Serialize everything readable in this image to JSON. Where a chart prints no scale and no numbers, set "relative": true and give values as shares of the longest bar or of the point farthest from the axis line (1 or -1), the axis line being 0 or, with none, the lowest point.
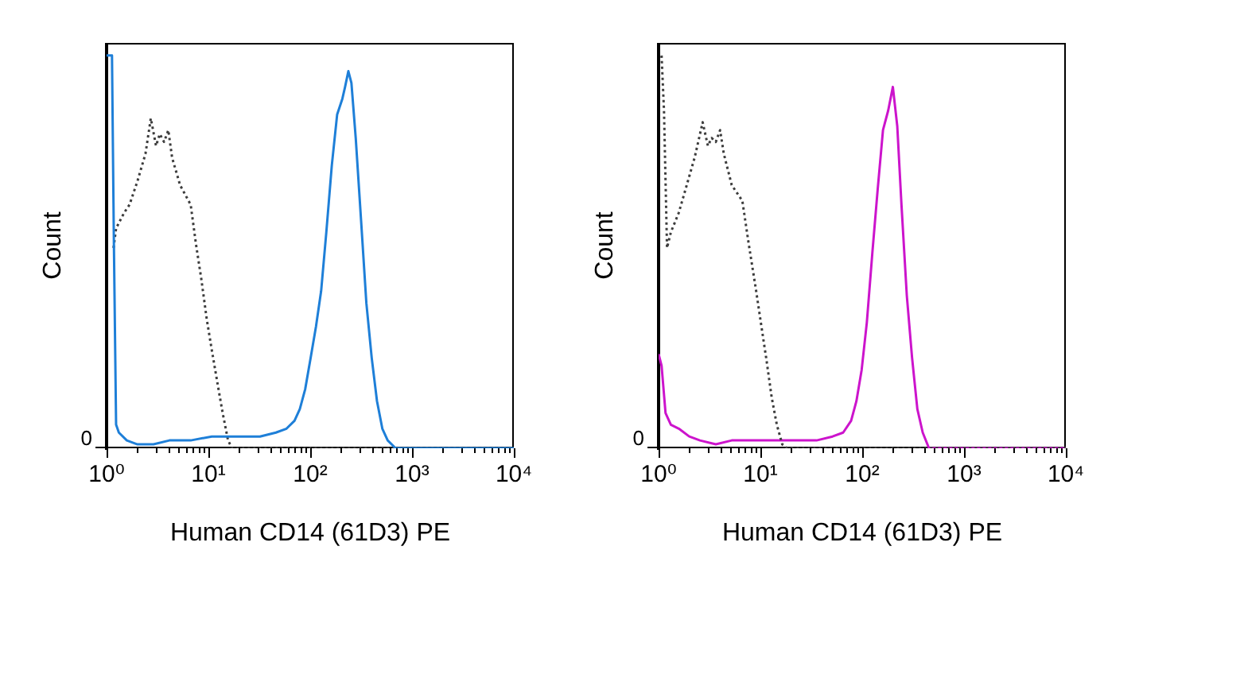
{
  "chart_data": [
    {
      "type": "line",
      "xlabel": "Human CD14 (61D3) PE",
      "ylabel": "Count",
      "log": "x",
      "relative": true,
      "grid": false,
      "legend": false,
      "marker": "none",
      "line_style": "solid",
      "tick_labels": "x",
      "xlim": [
        1,
        10000
      ],
      "xticks": [
        {
          "value": 1,
          "label": "10⁰"
        },
        {
          "value": 2,
          "label": null
        },
        {
          "value": 3,
          "label": null
        },
        {
          "value": 4,
          "label": null
        },
        {
          "value": 5,
          "label": null
        },
        {
          "value": 6,
          "label": null
        },
        {
          "value": 7,
          "label": null
        },
        {
          "value": 8,
          "label": null
        },
        {
          "value": 9,
          "label": null
        },
        {
          "value": 10,
          "label": "10¹"
        },
        {
          "value": 20,
          "label": null
        },
        {
          "value": 30,
          "label": null
        },
        {
          "value": 40,
          "label": null
        },
        {
          "value": 50,
          "label": null
        },
        {
          "value": 60,
          "label": null
        },
        {
          "value": 70,
          "label": null
        },
        {
          "value": 80,
          "label": null
        },
        {
          "value": 90,
          "label": null
        },
        {
          "value": 100,
          "label": "10²"
        },
        {
          "value": 200,
          "label": null
        },
        {
          "value": 300,
          "label": null
        },
        {
          "value": 400,
          "label": null
        },
        {
          "value": 500,
          "label": null
        },
        {
          "value": 600,
          "label": null
        },
        {
          "value": 700,
          "label": null
        },
        {
          "value": 800,
          "label": null
        },
        {
          "value": 900,
          "label": null
        },
        {
          "value": 1000,
          "label": "10³"
        },
        {
          "value": 2000,
          "label": null
        },
        {
          "value": 3000,
          "label": null
        },
        {
          "value": 4000,
          "label": null
        },
        {
          "value": 5000,
          "label": null
        },
        {
          "value": 6000,
          "label": null
        },
        {
          "value": 7000,
          "label": null
        },
        {
          "value": 8000,
          "label": null
        },
        {
          "value": 9000,
          "label": null
        },
        {
          "value": 10000,
          "label": "10⁴"
        }
      ],
      "annotations": [
        "0"
      ],
      "series": [
        {
          "color": "#1e7fd8",
          "x": [
            1,
            1.13,
            1.18,
            1.24,
            1.32,
            1.58,
            2.01,
            2.89,
            4.14,
            6.7,
            10.8,
            15.6,
            21,
            32.1,
            46,
            58.5,
            70.1,
            79.1,
            89.2,
            101,
            114,
            128,
            144,
            163,
            184,
            207,
            220,
            237,
            254,
            280,
            316,
            356,
            402,
            453,
            511,
            577,
            691,
            10000
          ],
          "values": [
            1,
            1,
            0.52,
            0.06,
            0.04,
            0.02,
            0.01,
            0.01,
            0.02,
            0.02,
            0.03,
            0.03,
            0.03,
            0.03,
            0.04,
            0.05,
            0.07,
            0.1,
            0.15,
            0.23,
            0.31,
            0.4,
            0.55,
            0.72,
            0.85,
            0.89,
            0.92,
            0.96,
            0.93,
            0.79,
            0.58,
            0.37,
            0.23,
            0.12,
            0.05,
            0.02,
            0,
            0
          ]
        },
        {
          "color": "#3c3c3c",
          "line_style": "dotted",
          "x": [
            1.17,
            1.24,
            1.49,
            1.68,
            2.01,
            2.41,
            2.72,
            3.06,
            3.33,
            3.67,
            4.04,
            4.4,
            5.27,
            6.7,
            7.55,
            8.53,
            9.62,
            10.8,
            12.2,
            13.8,
            15.6,
            17.1,
            10000
          ],
          "values": [
            0.51,
            0.56,
            0.6,
            0.62,
            0.68,
            0.75,
            0.84,
            0.77,
            0.8,
            0.78,
            0.81,
            0.74,
            0.67,
            0.62,
            0.52,
            0.43,
            0.33,
            0.25,
            0.17,
            0.09,
            0.02,
            0,
            0
          ]
        }
      ]
    },
    {
      "type": "line",
      "xlabel": "Human CD14 (61D3) PE",
      "ylabel": "Count",
      "log": "x",
      "relative": true,
      "grid": false,
      "legend": false,
      "marker": "none",
      "line_style": "solid",
      "tick_labels": "x",
      "xlim": [
        1,
        10000
      ],
      "xticks": [
        {
          "value": 1,
          "label": "10⁰"
        },
        {
          "value": 2,
          "label": null
        },
        {
          "value": 3,
          "label": null
        },
        {
          "value": 4,
          "label": null
        },
        {
          "value": 5,
          "label": null
        },
        {
          "value": 6,
          "label": null
        },
        {
          "value": 7,
          "label": null
        },
        {
          "value": 8,
          "label": null
        },
        {
          "value": 9,
          "label": null
        },
        {
          "value": 10,
          "label": "10¹"
        },
        {
          "value": 20,
          "label": null
        },
        {
          "value": 30,
          "label": null
        },
        {
          "value": 40,
          "label": null
        },
        {
          "value": 50,
          "label": null
        },
        {
          "value": 60,
          "label": null
        },
        {
          "value": 70,
          "label": null
        },
        {
          "value": 80,
          "label": null
        },
        {
          "value": 90,
          "label": null
        },
        {
          "value": 100,
          "label": "10²"
        },
        {
          "value": 200,
          "label": null
        },
        {
          "value": 300,
          "label": null
        },
        {
          "value": 400,
          "label": null
        },
        {
          "value": 500,
          "label": null
        },
        {
          "value": 600,
          "label": null
        },
        {
          "value": 700,
          "label": null
        },
        {
          "value": 800,
          "label": null
        },
        {
          "value": 900,
          "label": null
        },
        {
          "value": 1000,
          "label": "10³"
        },
        {
          "value": 2000,
          "label": null
        },
        {
          "value": 3000,
          "label": null
        },
        {
          "value": 4000,
          "label": null
        },
        {
          "value": 5000,
          "label": null
        },
        {
          "value": 6000,
          "label": null
        },
        {
          "value": 7000,
          "label": null
        },
        {
          "value": 8000,
          "label": null
        },
        {
          "value": 9000,
          "label": null
        },
        {
          "value": 10000,
          "label": "10⁴"
        }
      ],
      "annotations": [
        "0"
      ],
      "series": [
        {
          "color": "#3c3c3c",
          "line_style": "dotted",
          "x": [
            1.07,
            1.13,
            1.21,
            1.32,
            1.58,
            1.89,
            2.26,
            2.71,
            3.05,
            3.32,
            3.65,
            4.02,
            4.37,
            5.23,
            6.65,
            7.68,
            8.97,
            10.1,
            11.4,
            12.9,
            14.5,
            16.4,
            18.4,
            10000
          ],
          "values": [
            1,
            0.86,
            0.51,
            0.55,
            0.6,
            0.67,
            0.74,
            0.83,
            0.77,
            0.79,
            0.78,
            0.81,
            0.75,
            0.67,
            0.63,
            0.52,
            0.41,
            0.32,
            0.23,
            0.13,
            0.06,
            0.01,
            0,
            0
          ]
        },
        {
          "color": "#cc14cc",
          "x": [
            1,
            1.07,
            1.17,
            1.32,
            1.58,
            2,
            2.55,
            3.65,
            5.23,
            8.45,
            13.7,
            22.1,
            35.6,
            51.1,
            65,
            77.8,
            87.7,
            98.8,
            111,
            126,
            142,
            160,
            180,
            200,
            221,
            243,
            274,
            309,
            348,
            393,
            453,
            499,
            10000
          ],
          "values": [
            0.24,
            0.21,
            0.09,
            0.06,
            0.05,
            0.03,
            0.02,
            0.01,
            0.02,
            0.02,
            0.02,
            0.02,
            0.02,
            0.03,
            0.04,
            0.07,
            0.12,
            0.2,
            0.32,
            0.5,
            0.66,
            0.81,
            0.86,
            0.92,
            0.82,
            0.62,
            0.39,
            0.23,
            0.1,
            0.04,
            0,
            0,
            0
          ]
        }
      ]
    }
  ]
}
